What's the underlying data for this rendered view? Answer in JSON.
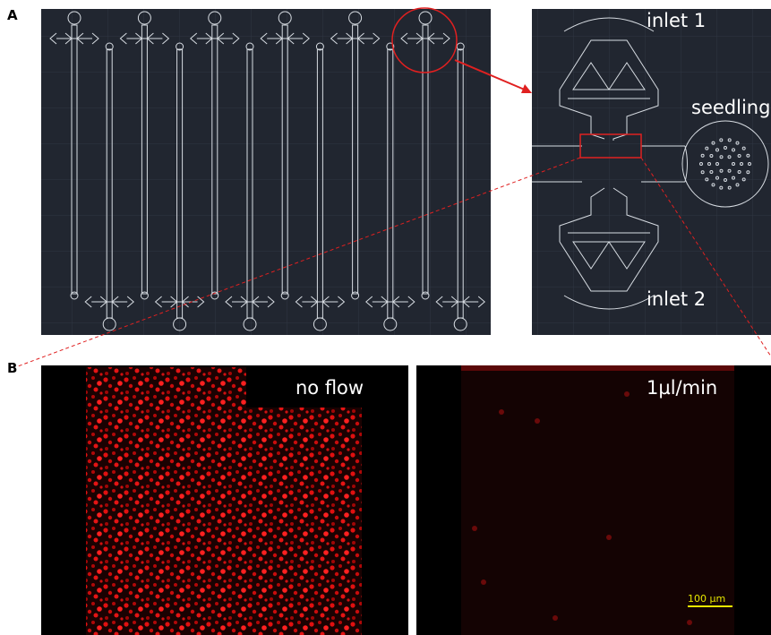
{
  "panel_a": {
    "label": "A",
    "inset": {
      "inlet_top": "inlet 1",
      "seedling": "seedling",
      "inlet_bottom": "inlet 2"
    }
  },
  "panel_b": {
    "label": "B",
    "left": {
      "caption": "no flow"
    },
    "right": {
      "caption": "1µl/min",
      "scale_bar": "100 µm"
    }
  }
}
